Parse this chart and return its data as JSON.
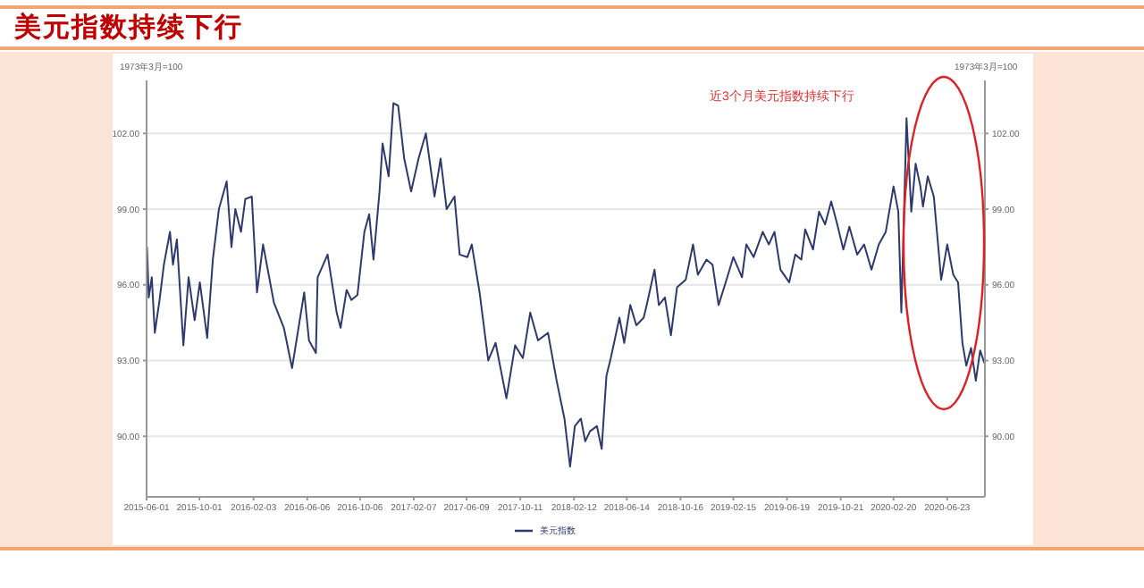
{
  "chart_data": {
    "type": "line",
    "title": "美元指数持续下行",
    "ylabel": "1973年3月=100",
    "y2label": "1973年3月=100",
    "annotations": [
      "近3个月美元指数持续下行"
    ],
    "x": [
      "2015-06-02",
      "2015-06-06",
      "2015-06-13",
      "2015-06-20",
      "2015-07-01",
      "2015-07-11",
      "2015-07-25",
      "2015-08-01",
      "2015-08-10",
      "2015-08-25",
      "2015-09-06",
      "2015-09-20",
      "2015-10-02",
      "2015-10-19",
      "2015-11-01",
      "2015-11-15",
      "2015-12-03",
      "2015-12-14",
      "2015-12-23",
      "2016-01-05",
      "2016-01-15",
      "2016-01-30",
      "2016-02-11",
      "2016-02-25",
      "2016-03-21",
      "2016-04-13",
      "2016-05-02",
      "2016-05-30",
      "2016-06-10",
      "2016-06-26",
      "2016-06-30",
      "2016-07-23",
      "2016-08-13",
      "2016-08-22",
      "2016-09-05",
      "2016-09-16",
      "2016-09-30",
      "2016-10-16",
      "2016-10-27",
      "2016-11-06",
      "2016-11-20",
      "2016-11-27",
      "2016-12-11",
      "2016-12-22",
      "2017-01-02",
      "2017-01-16",
      "2017-02-01",
      "2017-02-18",
      "2017-03-07",
      "2017-03-27",
      "2017-04-10",
      "2017-04-24",
      "2017-05-12",
      "2017-05-24",
      "2017-06-11",
      "2017-06-21",
      "2017-07-09",
      "2017-07-29",
      "2017-08-15",
      "2017-09-09",
      "2017-09-29",
      "2017-10-17",
      "2017-11-03",
      "2017-11-21",
      "2017-12-14",
      "2018-01-03",
      "2018-01-21",
      "2018-02-03",
      "2018-02-14",
      "2018-02-28",
      "2018-03-10",
      "2018-03-21",
      "2018-04-06",
      "2018-04-17",
      "2018-04-28",
      "2018-05-08",
      "2018-05-28",
      "2018-06-08",
      "2018-06-22",
      "2018-07-06",
      "2018-07-23",
      "2018-07-30",
      "2018-08-17",
      "2018-08-27",
      "2018-09-10",
      "2018-09-24",
      "2018-10-08",
      "2018-10-28",
      "2018-11-14",
      "2018-11-25",
      "2018-12-15",
      "2018-12-29",
      "2019-01-12",
      "2019-02-01",
      "2019-02-15",
      "2019-03-07",
      "2019-03-17",
      "2019-04-03",
      "2019-04-24",
      "2019-05-08",
      "2019-05-21",
      "2019-06-04",
      "2019-06-24",
      "2019-07-08",
      "2019-07-22",
      "2019-07-31",
      "2019-08-18",
      "2019-09-01",
      "2019-09-15",
      "2019-09-29",
      "2019-10-13",
      "2019-10-27",
      "2019-11-10",
      "2019-11-28",
      "2019-12-14",
      "2019-12-31",
      "2020-01-17",
      "2020-02-02",
      "2020-02-20",
      "2020-03-02",
      "2020-03-09",
      "2020-03-21",
      "2020-04-01",
      "2020-04-11",
      "2020-04-22",
      "2020-04-28",
      "2020-05-09",
      "2020-05-23",
      "2020-06-09",
      "2020-06-23",
      "2020-07-07",
      "2020-07-18",
      "2020-07-28",
      "2020-08-06",
      "2020-08-17",
      "2020-08-28",
      "2020-09-07",
      "2020-09-17"
    ],
    "series": [
      {
        "name": "美元指数",
        "color": "#2e3a6e",
        "values": [
          97.5,
          95.5,
          96.3,
          94.1,
          95.4,
          96.8,
          98.1,
          96.8,
          97.8,
          93.6,
          96.3,
          94.6,
          96.1,
          93.9,
          97.0,
          99.0,
          100.1,
          97.5,
          99.0,
          98.1,
          99.4,
          99.5,
          95.7,
          97.6,
          95.3,
          94.3,
          92.7,
          95.7,
          93.8,
          93.3,
          96.3,
          97.2,
          94.9,
          94.3,
          95.8,
          95.4,
          95.6,
          98.1,
          98.8,
          97.0,
          99.7,
          101.6,
          100.3,
          103.2,
          103.1,
          101.0,
          99.7,
          101.0,
          102.0,
          99.5,
          101.0,
          99.0,
          99.5,
          97.2,
          97.1,
          97.6,
          95.7,
          93.0,
          93.7,
          91.5,
          93.6,
          93.1,
          94.9,
          93.8,
          94.1,
          92.2,
          90.7,
          88.8,
          90.4,
          90.7,
          89.8,
          90.2,
          90.4,
          89.5,
          92.4,
          93.1,
          94.7,
          93.7,
          95.2,
          94.4,
          94.7,
          95.2,
          96.6,
          95.2,
          95.5,
          94.0,
          95.9,
          96.2,
          97.6,
          96.4,
          97.0,
          96.8,
          95.2,
          96.3,
          97.1,
          96.3,
          97.6,
          97.1,
          98.1,
          97.6,
          98.1,
          96.6,
          96.1,
          97.2,
          97.0,
          98.2,
          97.4,
          98.9,
          98.4,
          99.3,
          98.4,
          97.4,
          98.3,
          97.2,
          97.6,
          96.6,
          97.6,
          98.1,
          99.9,
          98.9,
          94.9,
          102.6,
          98.9,
          100.8,
          99.9,
          99.1,
          100.3,
          99.5,
          96.2,
          97.6,
          96.4,
          96.1,
          93.7,
          92.8,
          93.5,
          92.2,
          93.4,
          92.9
        ]
      }
    ],
    "xlim": [
      "2015-06-01",
      "2020-09-18"
    ],
    "xticks": [
      "2015-06-01",
      "2015-10-01",
      "2016-02-03",
      "2016-06-06",
      "2016-10-06",
      "2017-02-07",
      "2017-06-09",
      "2017-10-11",
      "2018-02-12",
      "2018-06-14",
      "2018-10-16",
      "2019-02-15",
      "2019-06-19",
      "2019-10-21",
      "2020-02-20",
      "2020-06-23"
    ],
    "ylim": [
      87.6,
      104.1
    ],
    "yticks": [
      {
        "value": 90,
        "label": "90.00"
      },
      {
        "value": 93,
        "label": "93.00"
      },
      {
        "value": 96,
        "label": "96.00"
      },
      {
        "value": 99,
        "label": "99.00"
      },
      {
        "value": 102,
        "label": "102.00"
      }
    ],
    "y2lim": [
      87.6,
      104.1
    ],
    "y2ticks": [
      {
        "value": 90,
        "label": "90.00"
      },
      {
        "value": 93,
        "label": "93.00"
      },
      {
        "value": 96,
        "label": "96.00"
      },
      {
        "value": 99,
        "label": "99.00"
      },
      {
        "value": 102,
        "label": "102.00"
      }
    ],
    "grid": "y",
    "legend": "bottom",
    "marker": "none",
    "line_style": "solid"
  }
}
